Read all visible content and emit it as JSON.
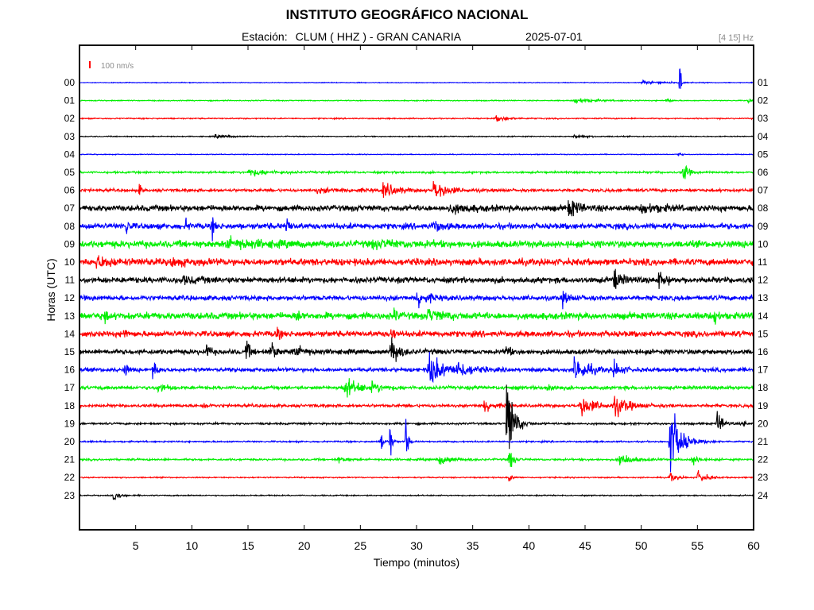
{
  "header": {
    "title": "INSTITUTO GEOGRÁFICO NACIONAL",
    "station_label": "Estación:",
    "station": "CLUM ( HHZ ) - GRAN CANARIA",
    "date": "2025-07-01",
    "filter": "[4 15] Hz"
  },
  "chart_data": {
    "type": "line",
    "title": "INSTITUTO GEOGRÁFICO NACIONAL",
    "subtitle": "Estación:  CLUM ( HHZ ) - GRAN CANARIA          2025-07-01",
    "xlabel": "Tiempo (minutos)",
    "ylabel": "Horas (UTC)",
    "xlim": [
      0,
      60
    ],
    "x_ticks": [
      5,
      10,
      15,
      20,
      25,
      30,
      35,
      40,
      45,
      50,
      55,
      60
    ],
    "left_labels": [
      "00",
      "01",
      "02",
      "03",
      "04",
      "05",
      "06",
      "07",
      "08",
      "09",
      "10",
      "11",
      "12",
      "13",
      "14",
      "15",
      "16",
      "17",
      "18",
      "19",
      "20",
      "21",
      "22",
      "23"
    ],
    "right_labels": [
      "01",
      "02",
      "03",
      "04",
      "05",
      "06",
      "07",
      "08",
      "09",
      "10",
      "11",
      "12",
      "13",
      "14",
      "15",
      "16",
      "17",
      "18",
      "19",
      "20",
      "21",
      "22",
      "23",
      "24"
    ],
    "scale_bar_label": "100 nm/s",
    "scale_bar_color": "#ff0000",
    "grid": false,
    "color_cycle": [
      "#0000ff",
      "#00ee00",
      "#ff0000",
      "#000000"
    ],
    "series": [
      {
        "hour": "00",
        "noise": 0.35,
        "events": [
          {
            "t": 50,
            "amp": 2,
            "dur": 4
          },
          {
            "t": 53.4,
            "amp": 40,
            "dur": 0.1
          }
        ]
      },
      {
        "hour": "01",
        "noise": 0.5,
        "events": [
          {
            "t": 44,
            "amp": 3,
            "dur": 3
          },
          {
            "t": 52.2,
            "amp": 6,
            "dur": 0.3
          },
          {
            "t": 59.5,
            "amp": 3,
            "dur": 0.5
          }
        ]
      },
      {
        "hour": "02",
        "noise": 0.6,
        "events": [
          {
            "t": 37,
            "amp": 3,
            "dur": 2
          }
        ]
      },
      {
        "hour": "03",
        "noise": 0.5,
        "events": [
          {
            "t": 12,
            "amp": 2,
            "dur": 2
          },
          {
            "t": 44,
            "amp": 2,
            "dur": 2
          }
        ]
      },
      {
        "hour": "04",
        "noise": 0.4,
        "events": [
          {
            "t": 53.2,
            "amp": 5,
            "dur": 0.3
          }
        ]
      },
      {
        "hour": "05",
        "noise": 1,
        "events": [
          {
            "t": 15,
            "amp": 4,
            "dur": 3
          },
          {
            "t": 53.7,
            "amp": 14,
            "dur": 0.6
          }
        ]
      },
      {
        "hour": "06",
        "noise": 1.5,
        "events": [
          {
            "t": 5.3,
            "amp": 8,
            "dur": 0.2
          },
          {
            "t": 21,
            "amp": 2,
            "dur": 5
          },
          {
            "t": 27,
            "amp": 8,
            "dur": 2
          },
          {
            "t": 31.5,
            "amp": 11,
            "dur": 2
          }
        ]
      },
      {
        "hour": "07",
        "noise": 3,
        "events": [
          {
            "t": 33,
            "amp": 4,
            "dur": 3
          },
          {
            "t": 43.5,
            "amp": 10,
            "dur": 1.5
          },
          {
            "t": 50,
            "amp": 4,
            "dur": 4
          }
        ]
      },
      {
        "hour": "08",
        "noise": 3,
        "events": [
          {
            "t": 4.1,
            "amp": 14,
            "dur": 0.3
          },
          {
            "t": 11.8,
            "amp": 11,
            "dur": 0.3
          },
          {
            "t": 18.4,
            "amp": 14,
            "dur": 0.3
          },
          {
            "t": 31.5,
            "amp": 7,
            "dur": 1
          },
          {
            "t": 9.4,
            "amp": 8,
            "dur": 0.3
          }
        ]
      },
      {
        "hour": "09",
        "noise": 3.5,
        "events": [
          {
            "t": 13,
            "amp": 5,
            "dur": 5
          },
          {
            "t": 26,
            "amp": 3,
            "dur": 5
          }
        ]
      },
      {
        "hour": "10",
        "noise": 3.5,
        "events": [
          {
            "t": 1.5,
            "amp": 6,
            "dur": 2
          },
          {
            "t": 5.5,
            "amp": 7,
            "dur": 0.3
          },
          {
            "t": 8,
            "amp": 3,
            "dur": 3
          }
        ]
      },
      {
        "hour": "11",
        "noise": 3,
        "events": [
          {
            "t": 47.5,
            "amp": 12,
            "dur": 1
          },
          {
            "t": 51.5,
            "amp": 9,
            "dur": 1
          },
          {
            "t": 9,
            "amp": 3,
            "dur": 3
          }
        ]
      },
      {
        "hour": "12",
        "noise": 2.5,
        "events": [
          {
            "t": 30,
            "amp": 10,
            "dur": 1.5
          },
          {
            "t": 43,
            "amp": 7,
            "dur": 1
          },
          {
            "t": 59.8,
            "amp": 6,
            "dur": 0.3
          }
        ]
      },
      {
        "hour": "13",
        "noise": 3.5,
        "events": [
          {
            "t": 2.2,
            "amp": 8,
            "dur": 0.3
          },
          {
            "t": 19.3,
            "amp": 12,
            "dur": 0.3
          },
          {
            "t": 28,
            "amp": 8,
            "dur": 0.3
          },
          {
            "t": 56.5,
            "amp": 14,
            "dur": 0.3
          },
          {
            "t": 31,
            "amp": 6,
            "dur": 2
          }
        ]
      },
      {
        "hour": "14",
        "noise": 3,
        "events": [
          {
            "t": 3.9,
            "amp": 8,
            "dur": 0.3
          },
          {
            "t": 17.5,
            "amp": 10,
            "dur": 0.3
          },
          {
            "t": 27.7,
            "amp": 12,
            "dur": 0.3
          }
        ]
      },
      {
        "hour": "15",
        "noise": 2.5,
        "events": [
          {
            "t": 11.3,
            "amp": 10,
            "dur": 0.4
          },
          {
            "t": 14.8,
            "amp": 15,
            "dur": 0.4
          },
          {
            "t": 17,
            "amp": 17,
            "dur": 0.5
          },
          {
            "t": 27.7,
            "amp": 18,
            "dur": 1
          },
          {
            "t": 37.9,
            "amp": 13,
            "dur": 0.4
          },
          {
            "t": 19,
            "amp": 6,
            "dur": 2
          }
        ]
      },
      {
        "hour": "16",
        "noise": 2,
        "events": [
          {
            "t": 4,
            "amp": 9,
            "dur": 0.4
          },
          {
            "t": 6.5,
            "amp": 12,
            "dur": 0.5
          },
          {
            "t": 31,
            "amp": 20,
            "dur": 2
          },
          {
            "t": 33.5,
            "amp": 10,
            "dur": 2
          },
          {
            "t": 44,
            "amp": 14,
            "dur": 2
          },
          {
            "t": 47.5,
            "amp": 10,
            "dur": 1
          }
        ]
      },
      {
        "hour": "17",
        "noise": 1.8,
        "events": [
          {
            "t": 7,
            "amp": 6,
            "dur": 1
          },
          {
            "t": 23.5,
            "amp": 12,
            "dur": 2
          },
          {
            "t": 26,
            "amp": 4,
            "dur": 2
          },
          {
            "t": 41.5,
            "amp": 6,
            "dur": 1
          }
        ]
      },
      {
        "hour": "18",
        "noise": 1.5,
        "events": [
          {
            "t": 36,
            "amp": 9,
            "dur": 1
          },
          {
            "t": 44.5,
            "amp": 13,
            "dur": 2
          },
          {
            "t": 47.5,
            "amp": 12,
            "dur": 2
          },
          {
            "t": 11,
            "amp": 5,
            "dur": 0.5
          }
        ]
      },
      {
        "hour": "19",
        "noise": 1,
        "events": [
          {
            "t": 38,
            "amp": 55,
            "dur": 1
          },
          {
            "t": 56.7,
            "amp": 15,
            "dur": 0.8
          },
          {
            "t": 59,
            "amp": 5,
            "dur": 0.3
          }
        ]
      },
      {
        "hour": "20",
        "noise": 0.8,
        "events": [
          {
            "t": 26.8,
            "amp": 16,
            "dur": 0.3
          },
          {
            "t": 27.6,
            "amp": 30,
            "dur": 0.2
          },
          {
            "t": 29,
            "amp": 40,
            "dur": 0.2
          },
          {
            "t": 52.5,
            "amp": 45,
            "dur": 1.5
          }
        ]
      },
      {
        "hour": "21",
        "noise": 1,
        "events": [
          {
            "t": 23,
            "amp": 3,
            "dur": 1
          },
          {
            "t": 32,
            "amp": 5,
            "dur": 2
          },
          {
            "t": 38.2,
            "amp": 18,
            "dur": 0.5
          },
          {
            "t": 48,
            "amp": 7,
            "dur": 2
          },
          {
            "t": 54.5,
            "amp": 6,
            "dur": 1
          }
        ]
      },
      {
        "hour": "22",
        "noise": 0.6,
        "events": [
          {
            "t": 38.2,
            "amp": 6,
            "dur": 0.4
          },
          {
            "t": 52.5,
            "amp": 6,
            "dur": 1
          },
          {
            "t": 55,
            "amp": 8,
            "dur": 1.2
          }
        ]
      },
      {
        "hour": "23",
        "noise": 0.6,
        "events": [
          {
            "t": 3,
            "amp": 5,
            "dur": 1
          }
        ]
      }
    ]
  }
}
